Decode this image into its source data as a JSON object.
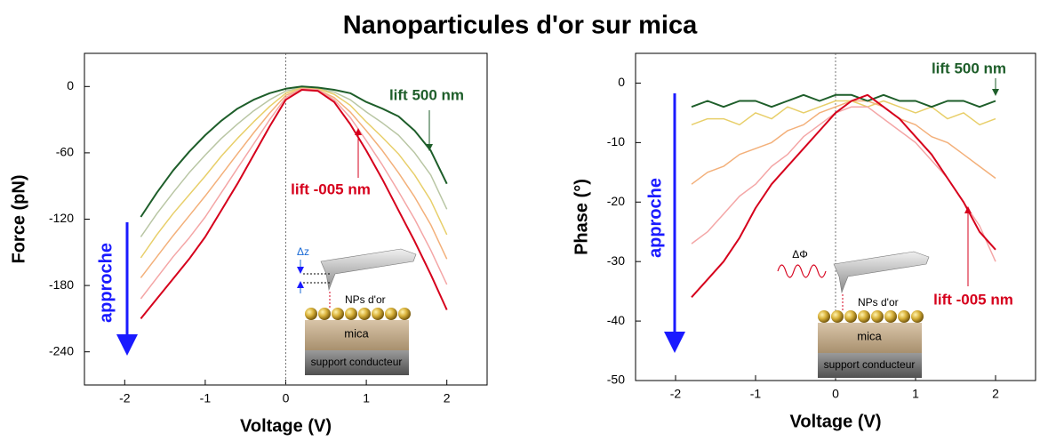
{
  "title": "Nanoparticules d'or sur mica",
  "chart_data": [
    {
      "type": "line",
      "x_label": "Voltage (V)",
      "y_label": "Force (pN)",
      "xlim": [
        -2.5,
        2.5
      ],
      "ylim": [
        -270,
        30
      ],
      "xticks": [
        -2,
        -1,
        0,
        1,
        2
      ],
      "yticks": [
        0,
        -60,
        -120,
        -180,
        -240
      ],
      "vline": 0,
      "x": [
        -1.8,
        -1.6,
        -1.4,
        -1.2,
        -1,
        -0.8,
        -0.6,
        -0.4,
        -0.2,
        0,
        0.2,
        0.4,
        0.6,
        0.8,
        1,
        1.2,
        1.4,
        1.6,
        1.8,
        2
      ],
      "series": [
        {
          "color": "#b9c6a4",
          "values": [
            -136,
            -115,
            -96,
            -78,
            -62,
            -47,
            -34,
            -22,
            -12,
            -4,
            -1,
            -2,
            -5,
            -12,
            -23,
            -33,
            -44,
            -60,
            -80,
            -111
          ]
        },
        {
          "color": "#e8cf6a",
          "values": [
            -155,
            -134,
            -115,
            -98,
            -81,
            -63,
            -47,
            -32,
            -18,
            -6,
            -1,
            -2,
            -7,
            -17,
            -32,
            -46,
            -61,
            -80,
            -103,
            -134
          ]
        },
        {
          "color": "#f3b07a",
          "values": [
            -173,
            -154,
            -135,
            -117,
            -99,
            -80,
            -61,
            -42,
            -24,
            -8,
            -2,
            -3,
            -10,
            -23,
            -40,
            -58,
            -78,
            -100,
            -125,
            -156
          ]
        },
        {
          "color": "#f4a6a6",
          "values": [
            -192,
            -173,
            -154,
            -137,
            -118,
            -96,
            -74,
            -52,
            -30,
            -10,
            -2,
            -3,
            -12,
            -28,
            -49,
            -71,
            -95,
            -120,
            -148,
            -179
          ]
        },
        {
          "name": "lift 500 nm",
          "color": "#1e5e2a",
          "values": [
            -118,
            -96,
            -76,
            -59,
            -44,
            -31,
            -20,
            -12,
            -6,
            -2,
            0,
            -1,
            -3,
            -6,
            -14,
            -20,
            -27,
            -40,
            -58,
            -88
          ]
        },
        {
          "name": "lift -005 nm",
          "color": "#d6001c",
          "values": [
            -210,
            -192,
            -174,
            -156,
            -136,
            -112,
            -88,
            -62,
            -36,
            -12,
            -3,
            -4,
            -14,
            -34,
            -58,
            -84,
            -112,
            -140,
            -170,
            -202
          ]
        }
      ],
      "annotation": "approche",
      "inset_labels": [
        "Δz",
        "NPs d'or",
        "mica",
        "support conducteur"
      ]
    },
    {
      "type": "line",
      "x_label": "Voltage (V)",
      "y_label": "Phase (°)",
      "xlim": [
        -2.5,
        2.5
      ],
      "ylim": [
        -50,
        5
      ],
      "xticks": [
        -2,
        -1,
        0,
        1,
        2
      ],
      "yticks": [
        0,
        -10,
        -20,
        -30,
        -40,
        -50
      ],
      "vline": 0,
      "x": [
        -1.8,
        -1.6,
        -1.4,
        -1.2,
        -1,
        -0.8,
        -0.6,
        -0.4,
        -0.2,
        0,
        0.2,
        0.4,
        0.6,
        0.8,
        1,
        1.2,
        1.4,
        1.6,
        1.8,
        2
      ],
      "series": [
        {
          "color": "#e8cf6a",
          "values": [
            -7,
            -6,
            -6,
            -7,
            -5,
            -6,
            -4,
            -5,
            -4,
            -3,
            -3,
            -4,
            -3,
            -4,
            -5,
            -4,
            -6,
            -5,
            -7,
            -6
          ]
        },
        {
          "color": "#f3b07a",
          "values": [
            -17,
            -15,
            -14,
            -12,
            -11,
            -10,
            -8,
            -7,
            -5,
            -4,
            -3,
            -3,
            -4,
            -6,
            -7,
            -9,
            -10,
            -12,
            -14,
            -16
          ]
        },
        {
          "color": "#f4a6a6",
          "values": [
            -27,
            -25,
            -22,
            -19,
            -17,
            -14,
            -12,
            -9,
            -7,
            -5,
            -4,
            -4,
            -6,
            -8,
            -10,
            -13,
            -16,
            -20,
            -24,
            -30
          ]
        },
        {
          "name": "lift 500 nm",
          "color": "#1e5e2a",
          "values": [
            -4,
            -3,
            -4,
            -3,
            -3,
            -4,
            -3,
            -2,
            -3,
            -2,
            -2,
            -3,
            -2,
            -3,
            -3,
            -4,
            -3,
            -3,
            -4,
            -3
          ]
        },
        {
          "name": "lift -005 nm",
          "color": "#d6001c",
          "values": [
            -36,
            -33,
            -30,
            -26,
            -21,
            -17,
            -14,
            -11,
            -8,
            -5,
            -3,
            -2,
            -4,
            -6,
            -9,
            -12,
            -16,
            -20,
            -25,
            -28
          ]
        }
      ],
      "annotation": "approche",
      "inset_labels": [
        "ΔΦ",
        "NPs d'or",
        "mica",
        "support conducteur"
      ]
    }
  ]
}
